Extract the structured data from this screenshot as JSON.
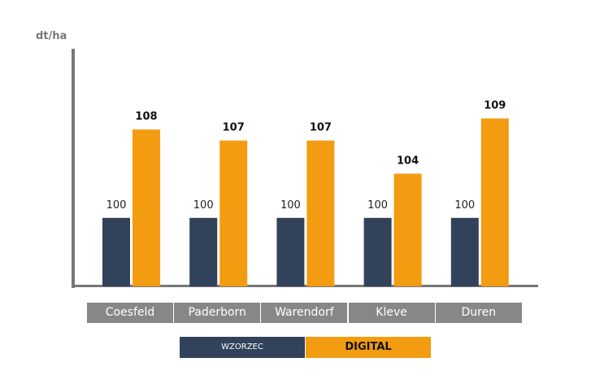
{
  "chart_data": {
    "type": "bar",
    "ylabel": "dt/ha",
    "categories": [
      "Coesfeld",
      "Paderborn",
      "Warendorf",
      "Kleve",
      "Duren"
    ],
    "series": [
      {
        "name": "WZORZEC",
        "color": "#33425b",
        "values": [
          100,
          100,
          100,
          100,
          100
        ]
      },
      {
        "name": "DIGITAL",
        "color": "#f39c12",
        "values": [
          108,
          107,
          107,
          104,
          109
        ]
      }
    ],
    "ylim": [
      93.8,
      115.3
    ],
    "grid": false,
    "legend": "bottom"
  }
}
